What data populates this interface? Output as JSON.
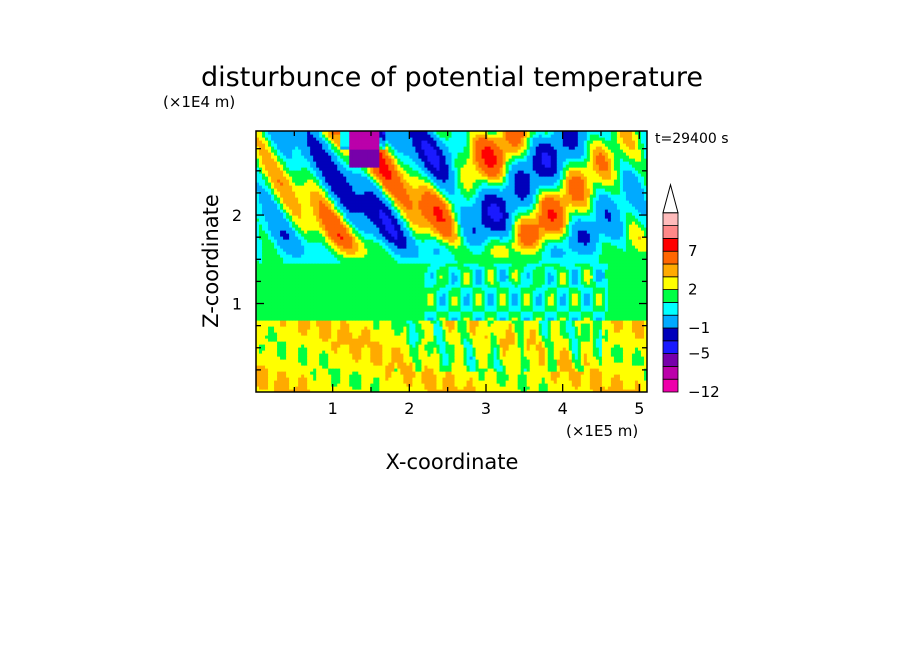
{
  "chart_data": {
    "type": "heatmap",
    "title": "disturbunce of potential temperature",
    "xlabel": "X-coordinate",
    "ylabel": "Z-coordinate",
    "x_unit": "(×1E5 m)",
    "y_unit": "(×1E4 m)",
    "time_label": "t=29400 s",
    "xlim": [
      0,
      5.1
    ],
    "ylim": [
      0,
      2.95
    ],
    "x_ticks": [
      {
        "value": 1,
        "label": "1"
      },
      {
        "value": 2,
        "label": "2"
      },
      {
        "value": 3,
        "label": "3"
      },
      {
        "value": 4,
        "label": "4"
      },
      {
        "value": 5,
        "label": "5"
      }
    ],
    "y_ticks": [
      {
        "value": 1,
        "label": "1"
      },
      {
        "value": 2,
        "label": "2"
      }
    ],
    "colorbar": {
      "levels": [
        -12,
        -9,
        -7,
        -5,
        -3,
        -1,
        0,
        1,
        2,
        3,
        5,
        7,
        9
      ],
      "colors": [
        "#ee00aa",
        "#bb00aa",
        "#7700aa",
        "#1a1aff",
        "#0000bb",
        "#00aaff",
        "#00ffff",
        "#00ff44",
        "#ffff00",
        "#ffaa00",
        "#ff6600",
        "#ff0000",
        "#ff8888",
        "#ffbbbb"
      ],
      "labels": [
        {
          "value": -12,
          "label": "−12"
        },
        {
          "value": -5,
          "label": "−5"
        },
        {
          "value": -1,
          "label": "−1"
        },
        {
          "value": 2,
          "label": "2"
        },
        {
          "value": 7,
          "label": "7"
        }
      ],
      "extend_max": true
    },
    "field": {
      "description_bands": [
        {
          "z_range": [
            0,
            0.8
          ],
          "typical_value": 1.5
        },
        {
          "z_range": [
            0.8,
            1.45
          ],
          "typical_value": 0.5
        },
        {
          "z_range": [
            1.45,
            2.95
          ],
          "typical_value": 0
        }
      ]
    }
  }
}
